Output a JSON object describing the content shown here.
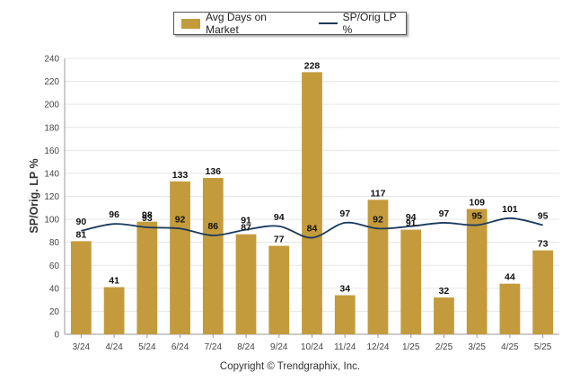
{
  "chart_data": {
    "type": "bar",
    "categories": [
      "3/24",
      "4/24",
      "5/24",
      "6/24",
      "7/24",
      "8/24",
      "9/24",
      "10/24",
      "11/24",
      "12/24",
      "1/25",
      "2/25",
      "3/25",
      "4/25",
      "5/25"
    ],
    "series": [
      {
        "name": "Avg Days on Market",
        "type": "bar",
        "values": [
          81,
          41,
          98,
          133,
          136,
          87,
          77,
          228,
          34,
          117,
          91,
          32,
          109,
          44,
          73
        ]
      },
      {
        "name": "SP/Orig LP %",
        "type": "line",
        "values": [
          90,
          96,
          93,
          92,
          86,
          91,
          94,
          84,
          97,
          92,
          94,
          97,
          95,
          101,
          95
        ]
      }
    ],
    "ylabel": "SP/Orig. LP %",
    "ylim": [
      0,
      240
    ],
    "yticks": [
      0,
      20,
      40,
      60,
      80,
      100,
      120,
      140,
      160,
      180,
      200,
      220,
      240
    ],
    "grid": true,
    "legend_position": "top"
  },
  "colors": {
    "bar": "#c49b3c",
    "line": "#1a3a5c",
    "grid": "#e6e6e6"
  },
  "footer": {
    "copyright": "Copyright © Trendgraphix, Inc."
  }
}
